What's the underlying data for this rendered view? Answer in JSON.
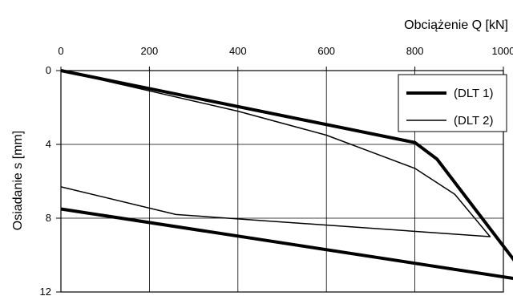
{
  "chart_data": {
    "type": "line",
    "xlabel": "Obciążenie Q  [kN]",
    "ylabel": "Osiadanie  s  [mm]",
    "x_axis_position": "top",
    "y_axis_inverted": true,
    "xlim": [
      0,
      1000
    ],
    "ylim": [
      0,
      12
    ],
    "x_ticks": [
      0,
      200,
      400,
      600,
      800,
      1000
    ],
    "y_ticks": [
      0,
      4,
      8,
      12
    ],
    "grid": true,
    "legend_position": "top-right",
    "series": [
      {
        "name": "(DLT 1)",
        "color": "#000000",
        "line_weight": "thick",
        "x": [
          0,
          800,
          850,
          1060,
          0
        ],
        "y": [
          0,
          3.9,
          4.8,
          11.4,
          7.5
        ]
      },
      {
        "name": "(DLT 2)",
        "color": "#000000",
        "line_weight": "thin",
        "x": [
          0,
          200,
          400,
          600,
          700,
          800,
          890,
          970,
          260,
          0
        ],
        "y": [
          0,
          1.1,
          2.2,
          3.5,
          4.4,
          5.3,
          6.7,
          9.0,
          7.8,
          6.3
        ]
      }
    ]
  }
}
